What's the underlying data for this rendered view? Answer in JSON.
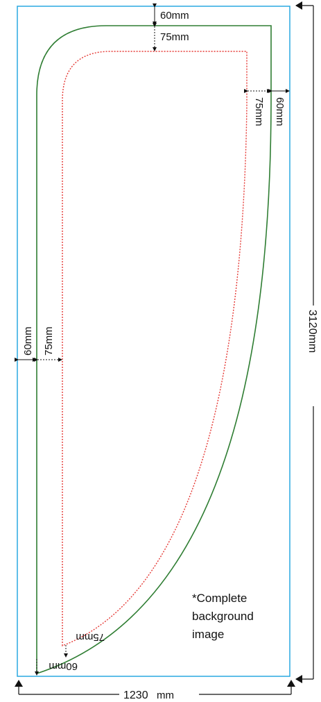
{
  "colors": {
    "background_border": "#29a9e0",
    "cut_line": "#2e7d32",
    "safe_line": "#e53935",
    "dimension": "#111111"
  },
  "dimensions": {
    "top_60": "60mm",
    "top_75": "75mm",
    "right_75": "75mm",
    "right_60": "60mm",
    "left_60": "60mm",
    "left_75": "75mm",
    "bottom_75": "75mm",
    "bottom_60": "60mm",
    "height_value": "3120mm",
    "width_value": "1230",
    "width_unit": "mm"
  },
  "note": {
    "line1": "*Complete",
    "line2": "background",
    "line3": "image"
  }
}
